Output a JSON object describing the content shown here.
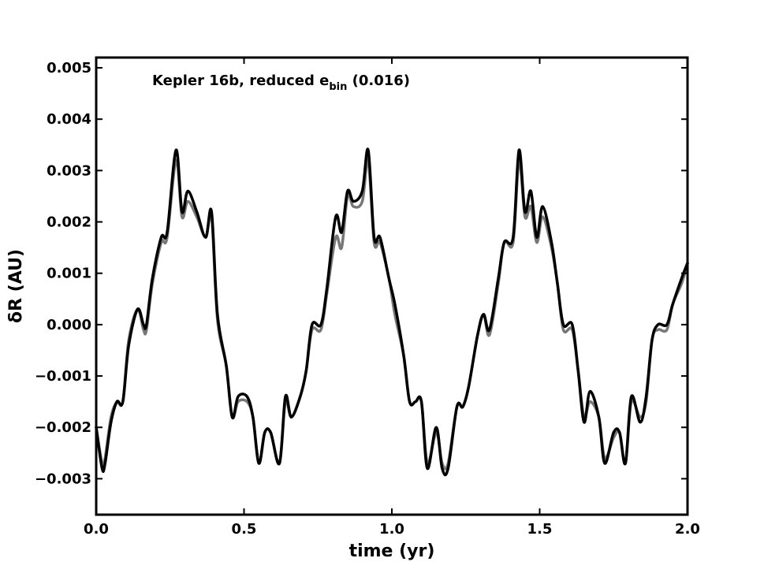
{
  "chart_data": {
    "type": "line",
    "title": "",
    "annotation": {
      "main": "Kepler 16b, reduced e",
      "subscript": "bin",
      "value": " (0.016)"
    },
    "xlabel": "time (yr)",
    "ylabel": "δR (AU)",
    "xlim": [
      0.0,
      2.0
    ],
    "ylim": [
      -0.0037,
      0.0052
    ],
    "xticks": [
      0.0,
      0.5,
      1.0,
      1.5,
      2.0
    ],
    "xtick_labels": [
      "0.0",
      "0.5",
      "1.0",
      "1.5",
      "2.0"
    ],
    "yticks": [
      -0.003,
      -0.002,
      -0.001,
      0.0,
      0.001,
      0.002,
      0.003,
      0.004,
      0.005
    ],
    "ytick_labels": [
      "−0.003",
      "−0.002",
      "−0.001",
      "0.000",
      "0.001",
      "0.002",
      "0.003",
      "0.004",
      "0.005"
    ],
    "grid": false,
    "legend": "none",
    "series": [
      {
        "color": "#777777",
        "x": [
          0.0,
          0.02,
          0.03,
          0.05,
          0.07,
          0.09,
          0.11,
          0.14,
          0.16,
          0.17,
          0.19,
          0.22,
          0.24,
          0.27,
          0.29,
          0.31,
          0.34,
          0.37,
          0.39,
          0.41,
          0.44,
          0.46,
          0.48,
          0.51,
          0.53,
          0.55,
          0.57,
          0.59,
          0.62,
          0.64,
          0.66,
          0.69,
          0.71,
          0.73,
          0.76,
          0.78,
          0.81,
          0.83,
          0.85,
          0.87,
          0.9,
          0.92,
          0.94,
          0.96,
          0.99,
          1.01,
          1.04,
          1.06,
          1.08,
          1.1,
          1.12,
          1.15,
          1.17,
          1.19,
          1.22,
          1.24,
          1.26,
          1.29,
          1.31,
          1.33,
          1.36,
          1.38,
          1.41,
          1.43,
          1.45,
          1.47,
          1.49,
          1.51,
          1.54,
          1.56,
          1.58,
          1.61,
          1.63,
          1.65,
          1.67,
          1.7,
          1.72,
          1.75,
          1.77,
          1.79,
          1.81,
          1.84,
          1.86,
          1.88,
          1.9,
          1.93,
          1.95,
          1.98,
          2.0
        ],
        "y": [
          -0.002,
          -0.0027,
          -0.0026,
          -0.0018,
          -0.0015,
          -0.0015,
          -0.0003,
          0.0003,
          -0.0001,
          -0.0001,
          0.0008,
          0.0016,
          0.0017,
          0.0032,
          0.0021,
          0.0024,
          0.0021,
          0.0017,
          0.0021,
          0.0001,
          -0.0008,
          -0.0018,
          -0.0015,
          -0.0015,
          -0.0018,
          -0.0027,
          -0.0021,
          -0.0021,
          -0.0027,
          -0.0015,
          -0.0018,
          -0.0014,
          -0.0009,
          -0.0001,
          -0.0001,
          0.0006,
          0.0017,
          0.0015,
          0.0025,
          0.0023,
          0.0024,
          0.0032,
          0.0016,
          0.0016,
          0.0009,
          0.0002,
          -0.0006,
          -0.0015,
          -0.0015,
          -0.0015,
          -0.0027,
          -0.0021,
          -0.0027,
          -0.0027,
          -0.0016,
          -0.0016,
          -0.0012,
          -0.0002,
          0.0002,
          -0.0002,
          0.0008,
          0.0016,
          0.0016,
          0.0032,
          0.0021,
          0.0023,
          0.0016,
          0.0021,
          0.0015,
          0.0008,
          -0.0001,
          -0.0001,
          -0.0009,
          -0.0018,
          -0.0015,
          -0.0018,
          -0.0026,
          -0.0022,
          -0.0021,
          -0.0027,
          -0.0015,
          -0.0018,
          -0.0015,
          -0.0003,
          -0.0001,
          -0.0001,
          0.0004,
          0.0008,
          0.0012
        ]
      },
      {
        "color": "#000000",
        "x": [
          0.0,
          0.02,
          0.03,
          0.05,
          0.07,
          0.09,
          0.11,
          0.14,
          0.16,
          0.17,
          0.19,
          0.22,
          0.24,
          0.27,
          0.29,
          0.31,
          0.34,
          0.37,
          0.39,
          0.41,
          0.44,
          0.46,
          0.48,
          0.51,
          0.53,
          0.55,
          0.57,
          0.59,
          0.62,
          0.64,
          0.66,
          0.69,
          0.71,
          0.73,
          0.76,
          0.78,
          0.81,
          0.83,
          0.85,
          0.87,
          0.9,
          0.92,
          0.94,
          0.96,
          0.99,
          1.01,
          1.04,
          1.06,
          1.08,
          1.1,
          1.12,
          1.15,
          1.17,
          1.19,
          1.22,
          1.24,
          1.26,
          1.29,
          1.31,
          1.33,
          1.36,
          1.38,
          1.41,
          1.43,
          1.45,
          1.47,
          1.49,
          1.51,
          1.54,
          1.56,
          1.58,
          1.61,
          1.63,
          1.65,
          1.67,
          1.7,
          1.72,
          1.75,
          1.77,
          1.79,
          1.81,
          1.84,
          1.86,
          1.88,
          1.9,
          1.93,
          1.95,
          1.98,
          2.0
        ],
        "y": [
          -0.002,
          -0.0028,
          -0.0027,
          -0.0019,
          -0.0015,
          -0.0015,
          -0.0004,
          0.0003,
          0.0,
          0.0,
          0.0009,
          0.0017,
          0.0018,
          0.0034,
          0.0022,
          0.0026,
          0.0022,
          0.0017,
          0.0022,
          0.0002,
          -0.0008,
          -0.0018,
          -0.0014,
          -0.0014,
          -0.0018,
          -0.0027,
          -0.0021,
          -0.0021,
          -0.0027,
          -0.0014,
          -0.0018,
          -0.0014,
          -0.0009,
          0.0,
          0.0,
          0.0007,
          0.0021,
          0.0018,
          0.0026,
          0.0024,
          0.0026,
          0.0034,
          0.0017,
          0.0017,
          0.0009,
          0.0004,
          -0.0006,
          -0.0015,
          -0.0015,
          -0.0015,
          -0.0028,
          -0.002,
          -0.0028,
          -0.0028,
          -0.0016,
          -0.0016,
          -0.0012,
          -0.0002,
          0.0002,
          -0.0001,
          0.0009,
          0.0016,
          0.0017,
          0.0034,
          0.0022,
          0.0026,
          0.0017,
          0.0023,
          0.0016,
          0.0008,
          0.0,
          0.0,
          -0.0009,
          -0.0019,
          -0.0013,
          -0.0018,
          -0.0027,
          -0.0021,
          -0.0021,
          -0.0027,
          -0.0014,
          -0.0019,
          -0.0014,
          -0.0003,
          0.0,
          0.0,
          0.0004,
          0.0009,
          0.0012
        ]
      }
    ]
  }
}
